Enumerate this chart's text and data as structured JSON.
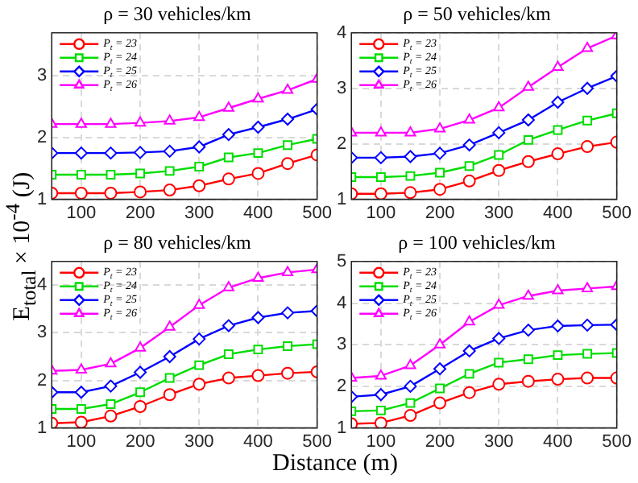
{
  "chart_data": [
    {
      "type": "line",
      "title": "ρ = 30 vehicles/km",
      "ylabel": "E$_{total}$ × 10$^{-4}$ (J)",
      "x": [
        50,
        100,
        150,
        200,
        250,
        300,
        350,
        400,
        450,
        500
      ],
      "xlim": [
        50,
        500
      ],
      "xticks": [
        100,
        200,
        300,
        400,
        500
      ],
      "ylim": [
        1,
        3.7
      ],
      "yticks": [
        1,
        2,
        3
      ],
      "grid": true,
      "legend": "top left",
      "tick_labels": "xy",
      "series": [
        {
          "name": "P$_{t}$ = 23",
          "color": "#ff0000",
          "marker": "circle",
          "values": [
            1.1,
            1.1,
            1.1,
            1.12,
            1.15,
            1.22,
            1.33,
            1.42,
            1.58,
            1.72
          ]
        },
        {
          "name": "P$_{t}$ = 24",
          "color": "#00dd00",
          "marker": "square",
          "values": [
            1.4,
            1.4,
            1.4,
            1.42,
            1.46,
            1.53,
            1.68,
            1.75,
            1.88,
            1.98
          ]
        },
        {
          "name": "P$_{t}$ = 25",
          "color": "#0000ff",
          "marker": "diamond",
          "values": [
            1.75,
            1.75,
            1.75,
            1.76,
            1.78,
            1.85,
            2.05,
            2.17,
            2.3,
            2.46
          ]
        },
        {
          "name": "P$_{t}$ = 26",
          "color": "#ff00ff",
          "marker": "triangle",
          "values": [
            2.22,
            2.22,
            2.22,
            2.24,
            2.27,
            2.33,
            2.48,
            2.63,
            2.77,
            2.95
          ]
        }
      ]
    },
    {
      "type": "line",
      "title": "ρ = 50 vehicles/km",
      "x": [
        50,
        100,
        150,
        200,
        250,
        300,
        350,
        400,
        450,
        500
      ],
      "xlim": [
        50,
        500
      ],
      "xticks": [
        100,
        200,
        300,
        400,
        500
      ],
      "ylim": [
        1,
        4
      ],
      "yticks": [
        1,
        2,
        3,
        4
      ],
      "grid": true,
      "legend": "top left",
      "tick_labels": "xy",
      "series": [
        {
          "name": "P$_{t}$ = 23",
          "color": "#ff0000",
          "marker": "circle",
          "values": [
            1.1,
            1.1,
            1.12,
            1.18,
            1.33,
            1.52,
            1.68,
            1.82,
            1.95,
            2.03
          ]
        },
        {
          "name": "P$_{t}$ = 24",
          "color": "#00dd00",
          "marker": "square",
          "values": [
            1.4,
            1.4,
            1.42,
            1.48,
            1.6,
            1.8,
            2.07,
            2.25,
            2.42,
            2.55
          ]
        },
        {
          "name": "P$_{t}$ = 25",
          "color": "#0000ff",
          "marker": "diamond",
          "values": [
            1.75,
            1.75,
            1.77,
            1.83,
            1.98,
            2.2,
            2.43,
            2.75,
            3.0,
            3.22
          ]
        },
        {
          "name": "P$_{t}$ = 26",
          "color": "#ff00ff",
          "marker": "triangle",
          "values": [
            2.2,
            2.2,
            2.2,
            2.27,
            2.43,
            2.65,
            3.02,
            3.38,
            3.72,
            3.95
          ]
        }
      ]
    },
    {
      "type": "line",
      "title": "ρ = 80 vehicles/km",
      "xlabel": "Distance (m)",
      "x": [
        50,
        100,
        150,
        200,
        250,
        300,
        350,
        400,
        450,
        500
      ],
      "xlim": [
        50,
        500
      ],
      "xticks": [
        100,
        200,
        300,
        400,
        500
      ],
      "ylim": [
        1,
        4.5
      ],
      "yticks": [
        1,
        2,
        3,
        4
      ],
      "grid": true,
      "legend": "top left",
      "tick_labels": "xy",
      "series": [
        {
          "name": "P$_{t}$ = 23",
          "color": "#ff0000",
          "marker": "circle",
          "values": [
            1.1,
            1.12,
            1.25,
            1.45,
            1.7,
            1.92,
            2.05,
            2.1,
            2.15,
            2.18
          ]
        },
        {
          "name": "P$_{t}$ = 24",
          "color": "#00dd00",
          "marker": "square",
          "values": [
            1.4,
            1.4,
            1.5,
            1.75,
            2.05,
            2.32,
            2.55,
            2.65,
            2.72,
            2.76
          ]
        },
        {
          "name": "P$_{t}$ = 25",
          "color": "#0000ff",
          "marker": "diamond",
          "values": [
            1.75,
            1.75,
            1.88,
            2.17,
            2.5,
            2.87,
            3.15,
            3.32,
            3.42,
            3.46
          ]
        },
        {
          "name": "P$_{t}$ = 26",
          "color": "#ff00ff",
          "marker": "triangle",
          "values": [
            2.2,
            2.22,
            2.35,
            2.68,
            3.12,
            3.58,
            3.95,
            4.15,
            4.27,
            4.33
          ]
        }
      ]
    },
    {
      "type": "line",
      "title": "ρ = 100 vehicles/km",
      "x": [
        50,
        100,
        150,
        200,
        250,
        300,
        350,
        400,
        450,
        500
      ],
      "xlim": [
        50,
        500
      ],
      "xticks": [
        100,
        200,
        300,
        400,
        500
      ],
      "ylim": [
        1,
        5
      ],
      "yticks": [
        1,
        2,
        3,
        4,
        5
      ],
      "grid": true,
      "legend": "top left",
      "tick_labels": "xy",
      "series": [
        {
          "name": "P$_{t}$ = 23",
          "color": "#ff0000",
          "marker": "circle",
          "values": [
            1.1,
            1.12,
            1.3,
            1.6,
            1.85,
            2.05,
            2.12,
            2.17,
            2.2,
            2.2
          ]
        },
        {
          "name": "P$_{t}$ = 24",
          "color": "#00dd00",
          "marker": "square",
          "values": [
            1.4,
            1.42,
            1.6,
            1.95,
            2.3,
            2.57,
            2.65,
            2.75,
            2.78,
            2.8
          ]
        },
        {
          "name": "P$_{t}$ = 25",
          "color": "#0000ff",
          "marker": "diamond",
          "values": [
            1.75,
            1.8,
            2.0,
            2.42,
            2.85,
            3.15,
            3.35,
            3.45,
            3.47,
            3.48
          ]
        },
        {
          "name": "P$_{t}$ = 26",
          "color": "#ff00ff",
          "marker": "triangle",
          "values": [
            2.2,
            2.25,
            2.5,
            3.0,
            3.55,
            3.95,
            4.17,
            4.3,
            4.35,
            4.4
          ]
        }
      ]
    }
  ]
}
